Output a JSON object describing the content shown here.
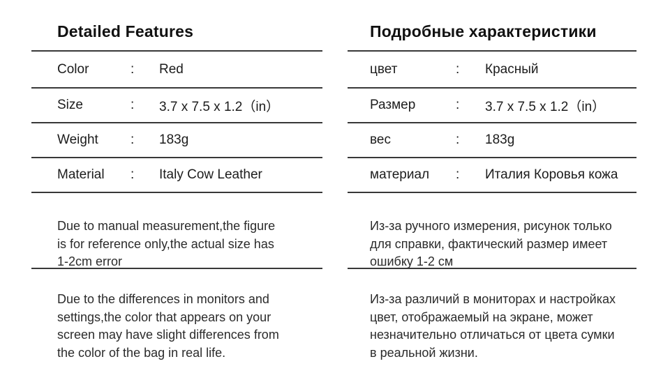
{
  "page": {
    "background_color": "#ffffff",
    "rule_color": "#383838",
    "text_color": "#1c1c1c"
  },
  "sections": {
    "en": {
      "title": "Detailed Features",
      "rows": [
        {
          "label": "Color",
          "colon": ":",
          "value": "Red"
        },
        {
          "label": "Size",
          "colon": ":",
          "value": "3.7 x 7.5 x 1.2（in）"
        },
        {
          "label": "Weight",
          "colon": ":",
          "value": "183g"
        },
        {
          "label": "Material",
          "colon": ":",
          "value": "Italy Cow Leather"
        }
      ],
      "note_measurement": [
        "Due to manual measurement,the figure",
        "is for reference only,the actual size has",
        "1-2cm error"
      ],
      "note_display": [
        "Due to the differences in monitors and",
        "settings,the color that appears on your",
        "screen may have slight differences from",
        "the color of the bag in real life."
      ]
    },
    "ru": {
      "title": "Подробные характеристики",
      "rows": [
        {
          "label": "цвет",
          "colon": ":",
          "value": "Красный"
        },
        {
          "label": "Размер",
          "colon": ":",
          "value": "3.7 x 7.5 x 1.2（in）"
        },
        {
          "label": "вес",
          "colon": ":",
          "value": "183g"
        },
        {
          "label": "материал",
          "colon": ":",
          "value": "Италия Коровья кожа"
        }
      ],
      "note_measurement": [
        "Из-за ручного измерения, рисунок только",
        "для справки, фактический размер имеет",
        "ошибку 1-2 см"
      ],
      "note_display": [
        "Из-за различий в мониторах и настройках",
        "цвет, отображаемый на экране, может",
        "незначительно отличаться от цвета сумки",
        "в реальной жизни."
      ]
    }
  }
}
